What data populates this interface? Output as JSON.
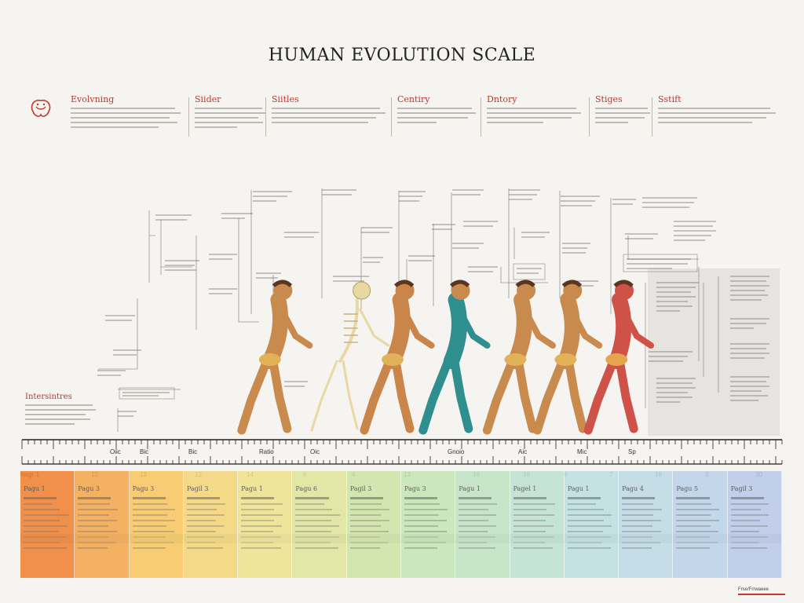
{
  "title": "HUMAN EVOLUTION SCALE",
  "header": {
    "logo_text": "",
    "columns": [
      {
        "heading": "Evolvning"
      },
      {
        "heading": "Siider"
      },
      {
        "heading": "Siitles"
      },
      {
        "heading": "Centiry"
      },
      {
        "heading": "Dntory"
      },
      {
        "heading": "Stiges"
      },
      {
        "heading": "Sstift"
      }
    ]
  },
  "left_note": {
    "heading": "Intersintres"
  },
  "figures": [
    {
      "name": "figure-1",
      "color": "#c98a4e",
      "trunk": "#d9a24f"
    },
    {
      "name": "figure-2-skeleton",
      "color": "#e9d7a4",
      "trunk": "#e9d7a4"
    },
    {
      "name": "figure-3",
      "color": "#c9854a",
      "trunk": "#d9a24f"
    },
    {
      "name": "figure-4",
      "color": "#c98a4e",
      "trunk": "#2f8f8f"
    },
    {
      "name": "figure-5",
      "color": "#c98a4e",
      "trunk": "#d9a24f"
    },
    {
      "name": "figure-6",
      "color": "#c98a4e",
      "trunk": "#d9a24f"
    },
    {
      "name": "figure-7",
      "color": "#cf5248",
      "trunk": "#d9a24f"
    }
  ],
  "ruler": {
    "labels": [
      "Oiic",
      "Bic",
      "Bic",
      "Ratio",
      "Oic",
      "Gnoio",
      "Aic",
      "Mic",
      "Sp"
    ]
  },
  "stage_numbers": [
    "Nagr 1",
    "12",
    "13",
    "12",
    "14",
    "6",
    "4",
    "13",
    "19",
    "19",
    "9",
    "7",
    "18",
    "9",
    "30"
  ],
  "stages": [
    {
      "name": "Pagu 1",
      "color": "#f07f2e"
    },
    {
      "name": "Pagu 3",
      "color": "#f5a64a"
    },
    {
      "name": "Pagu 3",
      "color": "#f8c65e"
    },
    {
      "name": "Pagil 3",
      "color": "#f4d677"
    },
    {
      "name": "Pagu 1",
      "color": "#efe28c"
    },
    {
      "name": "Pagu 6",
      "color": "#dfe49a"
    },
    {
      "name": "Pagil 3",
      "color": "#cfe4a5"
    },
    {
      "name": "Pagu 3",
      "color": "#c4e5b3"
    },
    {
      "name": "Pagu 1",
      "color": "#bfe4c3"
    },
    {
      "name": "Pagel 1",
      "color": "#bde2d2"
    },
    {
      "name": "Pagu 1",
      "color": "#bddfe0"
    },
    {
      "name": "Pagu 4",
      "color": "#bcd9e6"
    },
    {
      "name": "Pagu 5",
      "color": "#bbd2ea"
    },
    {
      "name": "Pagil 3",
      "color": "#b9c9ea"
    }
  ],
  "footer": {
    "text": "Frse/Frrwaeee"
  }
}
